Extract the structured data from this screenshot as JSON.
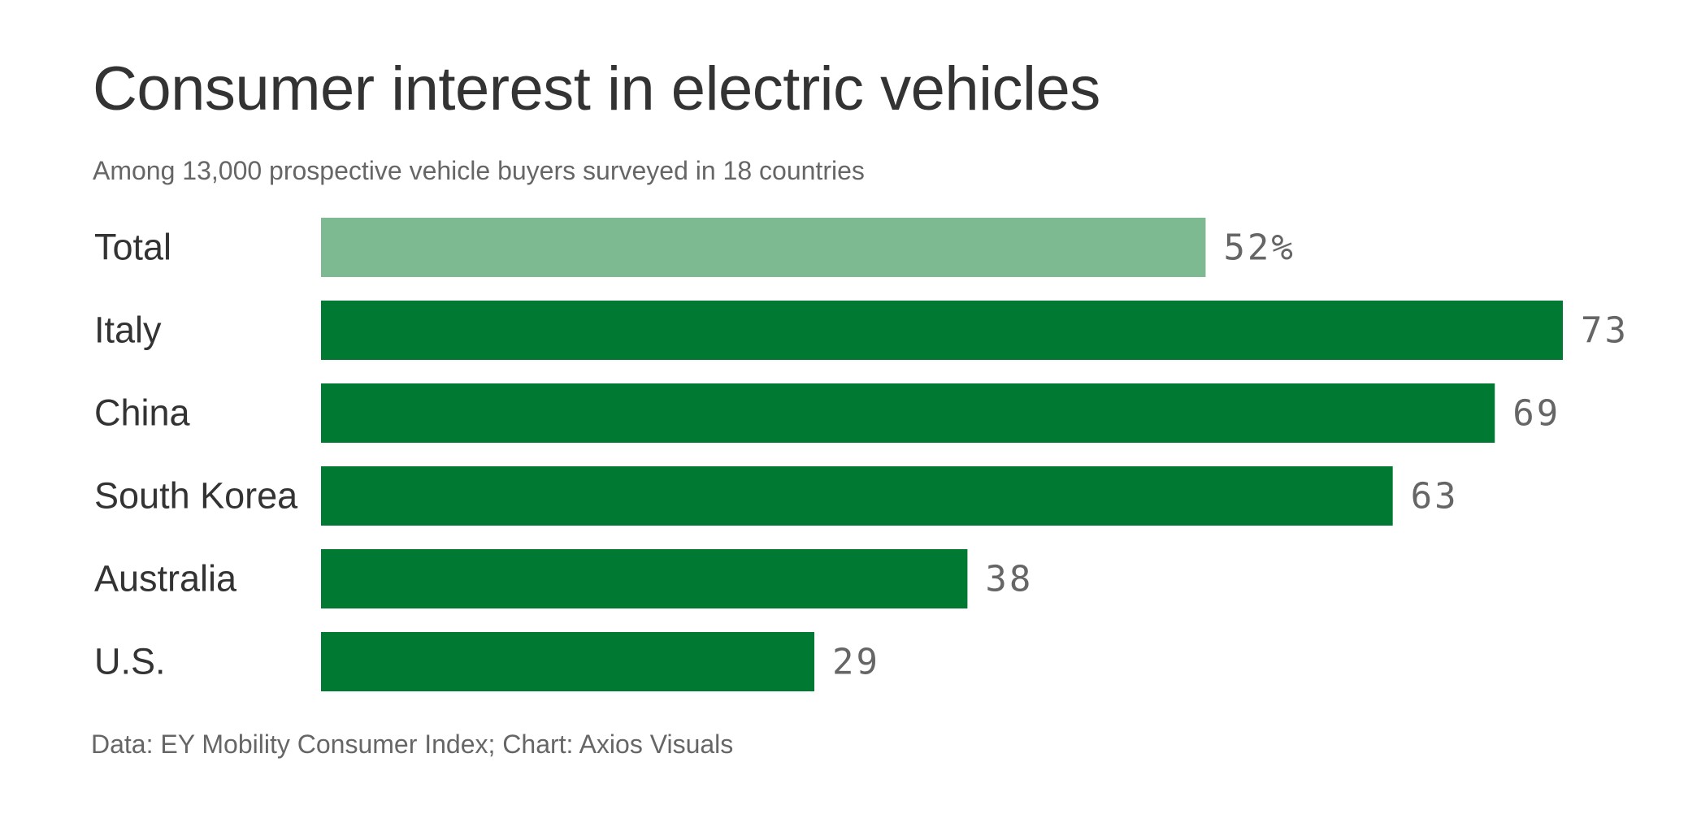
{
  "title": "Consumer interest in electric vehicles",
  "subtitle": "Among 13,000 prospective vehicle buyers surveyed in 18 countries",
  "source": "Data: EY Mobility Consumer Index; Chart: Axios Visuals",
  "colors": {
    "highlight_bar": "#7dba92",
    "bar": "#007a33",
    "value_text": "#666666",
    "label_text": "#333333"
  },
  "chart_data": {
    "type": "bar",
    "orientation": "horizontal",
    "title": "Consumer interest in electric vehicles",
    "subtitle": "Among 13,000 prospective vehicle buyers surveyed in 18 countries",
    "unit": "%",
    "categories": [
      "Total",
      "Italy",
      "China",
      "South Korea",
      "Australia",
      "U.S."
    ],
    "values": [
      52,
      73,
      69,
      63,
      38,
      29
    ],
    "value_labels": [
      "52%",
      "73",
      "69",
      "63",
      "38",
      "29"
    ],
    "highlighted_category": "Total",
    "xlim": [
      0,
      73
    ],
    "grid": false,
    "legend": false
  }
}
